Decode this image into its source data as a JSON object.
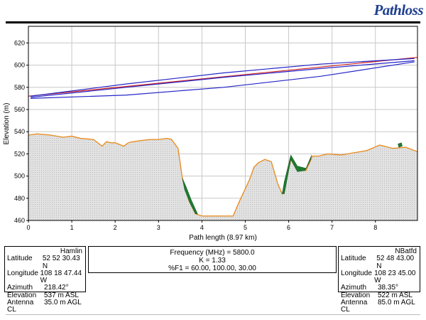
{
  "header": {
    "logo_text": "Pathloss"
  },
  "chart_data": {
    "type": "line",
    "title": "",
    "xlabel": "Path length (8.97 km)",
    "ylabel": "Elevation (m)",
    "xlim": [
      0,
      8.97
    ],
    "ylim": [
      460,
      635
    ],
    "x_ticks": [
      0,
      1,
      2,
      3,
      4,
      5,
      6,
      7,
      8
    ],
    "y_ticks": [
      460,
      480,
      500,
      520,
      540,
      560,
      580,
      600,
      620
    ],
    "grid": true,
    "colors": {
      "terrain_line": "#e8891a",
      "terrain_fill": "#dddddd",
      "ray": "#2525c8",
      "los": "#d42020",
      "vegetation": "#1e7b30"
    },
    "terrain": {
      "x": [
        0,
        0.2,
        0.5,
        0.8,
        1.0,
        1.2,
        1.5,
        1.7,
        1.8,
        1.9,
        2.0,
        2.2,
        2.3,
        2.4,
        2.6,
        2.8,
        3.0,
        3.2,
        3.3,
        3.45,
        3.55,
        3.7,
        3.85,
        4.0,
        4.5,
        4.72,
        4.85,
        5.1,
        5.2,
        5.3,
        5.45,
        5.6,
        5.75,
        5.85,
        5.92,
        6.05,
        6.2,
        6.4,
        6.55,
        6.7,
        6.9,
        7.2,
        7.5,
        7.8,
        8.1,
        8.4,
        8.7,
        8.97
      ],
      "y": [
        537,
        538,
        537,
        535,
        536,
        534,
        533,
        527,
        531,
        530,
        530,
        527,
        530,
        531,
        532,
        533,
        533,
        534,
        533,
        525,
        498,
        478,
        466,
        464,
        464,
        464,
        476,
        497,
        508,
        512,
        515,
        513,
        493,
        484,
        492,
        515,
        505,
        505,
        518,
        518,
        520,
        519,
        521,
        523,
        528,
        525,
        526,
        522
      ]
    },
    "vegetation": [
      {
        "x": [
          3.55,
          3.63,
          3.76,
          3.9,
          3.85,
          3.72,
          3.6
        ],
        "y": [
          498,
          491,
          478,
          466,
          466,
          476,
          488
        ]
      },
      {
        "x": [
          5.85,
          5.9,
          6.05,
          6.2,
          6.4,
          6.53,
          6.5,
          6.38,
          6.2,
          6.05,
          5.9
        ],
        "y": [
          484,
          495,
          519,
          509,
          507,
          519,
          514,
          505,
          504,
          515,
          484
        ]
      },
      {
        "x": [
          8.52,
          8.6,
          8.62,
          8.54
        ],
        "y": [
          529,
          530,
          527,
          526
        ]
      }
    ],
    "series": [
      {
        "name": "",
        "kind": "los",
        "x": [
          0,
          8.97
        ],
        "y": [
          572,
          607
        ]
      },
      {
        "name": "",
        "kind": "ray",
        "x": [
          0.05,
          2.25,
          4.5,
          6.75,
          8.9
        ],
        "y": [
          572,
          583,
          593,
          601,
          606
        ]
      },
      {
        "name": "",
        "kind": "ray",
        "x": [
          0.05,
          2.25,
          4.5,
          6.75,
          8.9
        ],
        "y": [
          571,
          580,
          589,
          597,
          604
        ]
      },
      {
        "name": "",
        "kind": "ray",
        "x": [
          0.05,
          2.25,
          4.5,
          6.75,
          8.9
        ],
        "y": [
          570,
          573,
          580,
          590,
          603
        ]
      }
    ]
  },
  "site_left": {
    "name": "Hamlin",
    "rows": [
      {
        "k": "Latitude",
        "v": "52 52 30.43 N"
      },
      {
        "k": "Longitude",
        "v": "108 18 47.44 W"
      },
      {
        "k": "Azimuth",
        "v": "218.42°"
      },
      {
        "k": "Elevation",
        "v": "537 m ASL"
      },
      {
        "k": "Antenna CL",
        "v": "35.0 m AGL"
      }
    ]
  },
  "site_right": {
    "name": "NBatfd",
    "rows": [
      {
        "k": "Latitude",
        "v": "52 48 43.00 N"
      },
      {
        "k": "Longitude",
        "v": "108 23 45.00 W"
      },
      {
        "k": "Azimuth",
        "v": "38.35°"
      },
      {
        "k": "Elevation",
        "v": "522 m ASL"
      },
      {
        "k": "Antenna CL",
        "v": "85.0 m AGL"
      }
    ]
  },
  "center": {
    "frequency": "Frequency (MHz) = 5800.0",
    "k": "K = 1.33",
    "f1": "%F1 = 60.00, 100.00, 30.00"
  }
}
